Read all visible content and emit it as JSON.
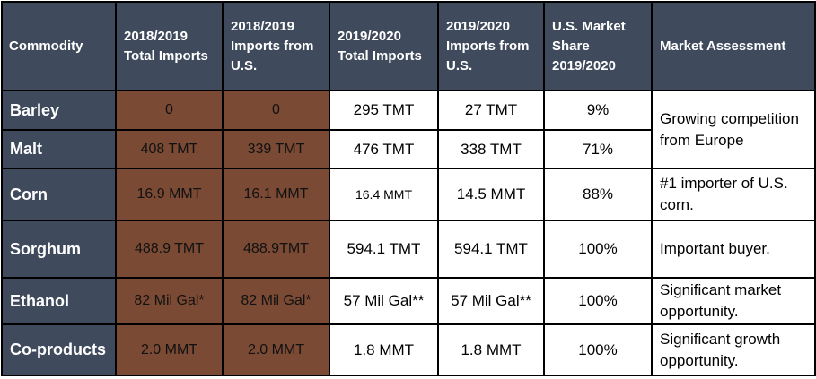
{
  "headers": [
    "Commodity",
    "2018/2019 Total Imports",
    "2018/2019 Imports from U.S.",
    "2019/2020 Total Imports",
    "2019/2020 Imports from U.S.",
    "U.S. Market Share 2019/2020",
    "Market Assessment"
  ],
  "rows": [
    {
      "commodity": "Barley",
      "total_1819": "0",
      "us_1819": "0",
      "total_1920": "295 TMT",
      "us_1920": "27 TMT",
      "share": "9%"
    },
    {
      "commodity": "Malt",
      "total_1819": "408 TMT",
      "us_1819": "339 TMT",
      "total_1920": "476 TMT",
      "us_1920": "338 TMT",
      "share": "71%"
    },
    {
      "commodity": "Corn",
      "total_1819": "16.9 MMT",
      "us_1819": "16.1 MMT",
      "total_1920": "16.4 MMT",
      "us_1920": "14.5 MMT",
      "share": "88%"
    },
    {
      "commodity": "Sorghum",
      "total_1819": "488.9 TMT",
      "us_1819": "488.9TMT",
      "total_1920": "594.1 TMT",
      "us_1920": "594.1 TMT",
      "share": "100%"
    },
    {
      "commodity": "Ethanol",
      "total_1819": "82 Mil Gal*",
      "us_1819": "82 Mil Gal*",
      "total_1920": "57 Mil Gal**",
      "us_1920": "57 Mil Gal**",
      "share": "100%"
    },
    {
      "commodity": "Co-products",
      "total_1819": "2.0 MMT",
      "us_1819": "2.0 MMT",
      "total_1920": "1.8 MMT",
      "us_1920": "1.8 MMT",
      "share": "100%"
    }
  ],
  "assessments": [
    "Growing competition from Europe",
    "#1 importer of U.S. corn.",
    "Important buyer.",
    "Significant market opportunity.",
    "Significant growth opportunity."
  ]
}
